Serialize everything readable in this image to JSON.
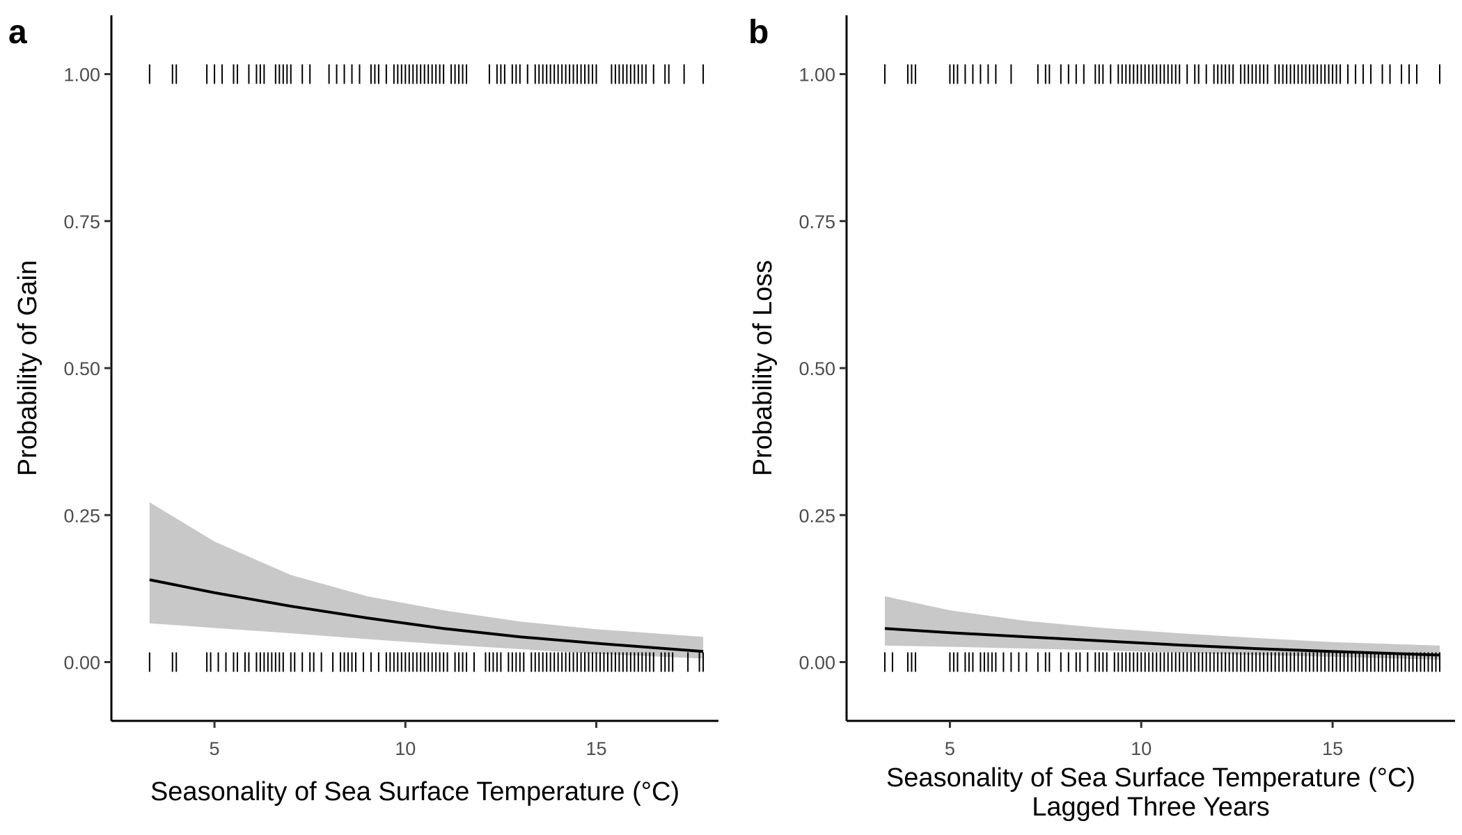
{
  "chart_data": [
    {
      "type": "line",
      "panel_label": "a",
      "xlabel": [
        "Seasonality of Sea Surface Temperature (°C)"
      ],
      "ylabel": "Probability of Gain",
      "xlim": [
        2.3,
        18.2
      ],
      "ylim": [
        -0.1,
        1.1
      ],
      "x_ticks": [
        5,
        10,
        15
      ],
      "x_tick_labels": [
        "5",
        "10",
        "15"
      ],
      "y_ticks": [
        0,
        0.25,
        0.5,
        0.75,
        1
      ],
      "y_tick_labels": [
        "0.00",
        "0.25",
        "0.50",
        "0.75",
        "1.00"
      ],
      "grid": false,
      "series": [
        {
          "fit": {
            "x": [
              3.3,
              5,
              7,
              9,
              11,
              13,
              15,
              17.8
            ],
            "y": [
              0.14,
              0.118,
              0.095,
              0.075,
              0.057,
              0.043,
              0.032,
              0.018
            ]
          },
          "ci_upper": {
            "x": [
              3.3,
              5,
              7,
              9,
              11,
              13,
              15,
              17.8
            ],
            "y": [
              0.272,
              0.205,
              0.148,
              0.112,
              0.088,
              0.069,
              0.056,
              0.043
            ]
          },
          "ci_lower": {
            "x": [
              3.3,
              5,
              7,
              9,
              11,
              13,
              15,
              17.8
            ],
            "y": [
              0.066,
              0.058,
              0.049,
              0.039,
              0.03,
              0.022,
              0.014,
              0.006
            ]
          }
        }
      ],
      "rug_top": [
        3.3,
        3.9,
        4.0,
        4.8,
        5.0,
        5.2,
        5.5,
        5.6,
        5.9,
        6.1,
        6.2,
        6.3,
        6.6,
        6.7,
        6.8,
        6.9,
        7.0,
        7.3,
        7.5,
        8.0,
        8.2,
        8.4,
        8.6,
        8.8,
        9.1,
        9.2,
        9.3,
        9.5,
        9.7,
        9.8,
        9.9,
        10.0,
        10.1,
        10.2,
        10.3,
        10.4,
        10.5,
        10.6,
        10.7,
        10.8,
        10.9,
        11.0,
        11.2,
        11.3,
        11.4,
        11.5,
        11.6,
        12.2,
        12.4,
        12.5,
        12.6,
        12.8,
        12.9,
        13.0,
        13.2,
        13.4,
        13.5,
        13.6,
        13.7,
        13.8,
        13.9,
        14.0,
        14.1,
        14.2,
        14.3,
        14.4,
        14.5,
        14.6,
        14.7,
        14.8,
        14.9,
        15.0,
        15.4,
        15.5,
        15.6,
        15.7,
        15.8,
        15.9,
        16.0,
        16.1,
        16.2,
        16.3,
        16.5,
        16.8,
        16.9,
        17.3,
        17.8
      ],
      "rug_bottom": [
        3.3,
        3.9,
        4.0,
        4.8,
        4.9,
        5.1,
        5.3,
        5.5,
        5.6,
        5.8,
        5.9,
        6.1,
        6.2,
        6.3,
        6.4,
        6.5,
        6.6,
        6.7,
        6.8,
        7.0,
        7.1,
        7.3,
        7.5,
        7.6,
        7.8,
        8.1,
        8.3,
        8.4,
        8.5,
        8.6,
        8.7,
        8.9,
        9.1,
        9.3,
        9.5,
        9.6,
        9.7,
        9.8,
        9.9,
        10.0,
        10.1,
        10.2,
        10.3,
        10.4,
        10.5,
        10.6,
        10.7,
        10.8,
        10.9,
        11.0,
        11.1,
        11.3,
        11.4,
        11.5,
        11.6,
        11.8,
        12.1,
        12.2,
        12.3,
        12.4,
        12.5,
        12.7,
        12.8,
        12.9,
        13.0,
        13.1,
        13.3,
        13.4,
        13.5,
        13.6,
        13.7,
        13.8,
        13.9,
        14.0,
        14.1,
        14.2,
        14.3,
        14.4,
        14.5,
        14.6,
        14.7,
        14.8,
        14.9,
        15.0,
        15.1,
        15.2,
        15.3,
        15.4,
        15.5,
        15.6,
        15.7,
        15.8,
        15.9,
        16.0,
        16.1,
        16.2,
        16.3,
        16.4,
        16.5,
        16.7,
        16.8,
        16.9,
        17.0,
        17.4,
        17.7,
        17.8
      ]
    },
    {
      "type": "line",
      "panel_label": "b",
      "xlabel": [
        "Seasonality of Sea Surface Temperature (°C)",
        "Lagged Three Years"
      ],
      "ylabel": "Probability of Loss",
      "xlim": [
        2.3,
        18.2
      ],
      "ylim": [
        -0.1,
        1.1
      ],
      "x_ticks": [
        5,
        10,
        15
      ],
      "x_tick_labels": [
        "5",
        "10",
        "15"
      ],
      "y_ticks": [
        0,
        0.25,
        0.5,
        0.75,
        1
      ],
      "y_tick_labels": [
        "0.00",
        "0.25",
        "0.50",
        "0.75",
        "1.00"
      ],
      "grid": false,
      "series": [
        {
          "fit": {
            "x": [
              3.3,
              5,
              7,
              9,
              11,
              13,
              15,
              17.8
            ],
            "y": [
              0.057,
              0.05,
              0.043,
              0.036,
              0.029,
              0.023,
              0.018,
              0.012
            ]
          },
          "ci_upper": {
            "x": [
              3.3,
              5,
              7,
              9,
              11,
              13,
              15,
              17.8
            ],
            "y": [
              0.112,
              0.088,
              0.07,
              0.058,
              0.049,
              0.041,
              0.034,
              0.028
            ]
          },
          "ci_lower": {
            "x": [
              3.3,
              5,
              7,
              9,
              11,
              13,
              15,
              17.8
            ],
            "y": [
              0.028,
              0.026,
              0.023,
              0.02,
              0.016,
              0.012,
              0.009,
              0.004
            ]
          }
        }
      ],
      "rug_top": [
        3.3,
        3.9,
        4.0,
        4.1,
        5.0,
        5.1,
        5.2,
        5.4,
        5.6,
        5.8,
        6.0,
        6.2,
        6.6,
        7.3,
        7.5,
        7.6,
        7.9,
        8.1,
        8.3,
        8.5,
        8.8,
        8.9,
        9.0,
        9.2,
        9.4,
        9.5,
        9.6,
        9.7,
        9.8,
        9.9,
        10.0,
        10.1,
        10.2,
        10.3,
        10.4,
        10.5,
        10.6,
        10.7,
        10.8,
        10.9,
        11.0,
        11.2,
        11.4,
        11.5,
        11.7,
        11.9,
        12.0,
        12.1,
        12.2,
        12.3,
        12.4,
        12.6,
        12.7,
        12.8,
        12.9,
        13.0,
        13.1,
        13.2,
        13.3,
        13.5,
        13.6,
        13.7,
        13.8,
        13.9,
        14.0,
        14.1,
        14.2,
        14.3,
        14.4,
        14.5,
        14.6,
        14.7,
        14.8,
        14.9,
        15.0,
        15.1,
        15.2,
        15.4,
        15.6,
        15.8,
        16.0,
        16.3,
        16.5,
        16.8,
        17.0,
        17.2,
        17.8
      ],
      "rug_bottom": [
        3.3,
        3.5,
        3.9,
        4.0,
        4.1,
        5.0,
        5.1,
        5.2,
        5.4,
        5.5,
        5.6,
        5.8,
        5.9,
        6.0,
        6.1,
        6.2,
        6.4,
        6.6,
        6.8,
        7.0,
        7.3,
        7.5,
        7.6,
        7.9,
        8.1,
        8.3,
        8.4,
        8.6,
        8.8,
        8.9,
        9.0,
        9.1,
        9.3,
        9.4,
        9.5,
        9.6,
        9.7,
        9.8,
        9.9,
        10.0,
        10.1,
        10.2,
        10.3,
        10.4,
        10.5,
        10.6,
        10.7,
        10.8,
        10.9,
        11.0,
        11.1,
        11.2,
        11.3,
        11.4,
        11.5,
        11.6,
        11.7,
        11.8,
        11.9,
        12.0,
        12.1,
        12.2,
        12.3,
        12.4,
        12.5,
        12.6,
        12.7,
        12.8,
        12.9,
        13.0,
        13.1,
        13.2,
        13.3,
        13.4,
        13.5,
        13.6,
        13.7,
        13.8,
        13.9,
        14.0,
        14.1,
        14.2,
        14.3,
        14.4,
        14.5,
        14.6,
        14.7,
        14.8,
        14.9,
        15.0,
        15.1,
        15.2,
        15.3,
        15.4,
        15.5,
        15.6,
        15.7,
        15.8,
        15.9,
        16.0,
        16.1,
        16.2,
        16.3,
        16.4,
        16.5,
        16.6,
        16.7,
        16.8,
        16.9,
        17.0,
        17.1,
        17.2,
        17.3,
        17.4,
        17.5,
        17.6,
        17.7,
        17.8
      ]
    }
  ],
  "colors": {
    "fit_line": "#000000",
    "ci_ribbon": "#c8c8c8",
    "rug": "#000000",
    "tick_label": "#4d4d4d",
    "axis": "#000000"
  }
}
